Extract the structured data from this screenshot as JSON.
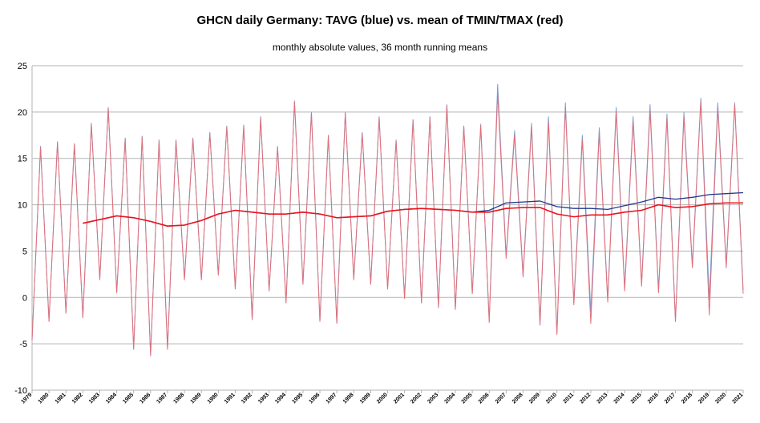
{
  "chart_data": {
    "type": "line",
    "title": "GHCN daily Germany: TAVG (blue) vs. mean of TMIN/TMAX (red)",
    "subtitle": "monthly absolute values, 36 month running means",
    "xlim": [
      1979,
      2021
    ],
    "xticks": [
      1979,
      1980,
      1981,
      1982,
      1983,
      1984,
      1985,
      1986,
      1987,
      1988,
      1989,
      1990,
      1991,
      1992,
      1993,
      1994,
      1995,
      1996,
      1997,
      1998,
      1999,
      2000,
      2001,
      2002,
      2003,
      2004,
      2005,
      2006,
      2007,
      2008,
      2009,
      2010,
      2011,
      2012,
      2013,
      2014,
      2015,
      2016,
      2017,
      2018,
      2019,
      2020,
      2021
    ],
    "ylim": [
      -10,
      25
    ],
    "yticks": [
      -10,
      -5,
      0,
      5,
      10,
      15,
      20,
      25
    ],
    "grid": true,
    "series": [
      {
        "color": "#7a9fd4",
        "width": 1,
        "x": [
          1979,
          1979.5,
          1980,
          1980.5,
          1981,
          1981.5,
          1982,
          1982.5,
          1983,
          1983.5,
          1984,
          1984.5,
          1985,
          1985.5,
          1986,
          1986.5,
          1987,
          1987.5,
          1988,
          1988.5,
          1989,
          1989.5,
          1990,
          1990.5,
          1991,
          1991.5,
          1992,
          1992.5,
          1993,
          1993.5,
          1994,
          1994.5,
          1995,
          1995.5,
          1996,
          1996.5,
          1997,
          1997.5,
          1998,
          1998.5,
          1999,
          1999.5,
          2000,
          2000.5,
          2001,
          2001.5,
          2002,
          2002.5,
          2003,
          2003.5,
          2004,
          2004.5,
          2005,
          2005.5,
          2006,
          2006.5,
          2007,
          2007.5,
          2008,
          2008.5,
          2009,
          2009.5,
          2010,
          2010.5,
          2011,
          2011.5,
          2012,
          2012.5,
          2013,
          2013.5,
          2014,
          2014.5,
          2015,
          2015.5,
          2016,
          2016.5,
          2017,
          2017.5,
          2018,
          2018.5,
          2019,
          2019.5,
          2020,
          2020.5,
          2021
        ],
        "values": [
          -4.5,
          16.3,
          -2.5,
          16.8,
          -1.6,
          16.6,
          -2.1,
          18.8,
          2.0,
          20.5,
          0.6,
          17.2,
          -5.5,
          17.4,
          -6.2,
          17.0,
          -5.5,
          17.0,
          2.0,
          17.2,
          2.0,
          17.8,
          2.5,
          18.5,
          1.0,
          18.6,
          -2.3,
          19.5,
          0.8,
          16.3,
          -0.5,
          21.2,
          1.5,
          20.0,
          -2.5,
          17.5,
          -2.7,
          20.0,
          2.0,
          17.8,
          1.5,
          19.5,
          1.0,
          17.0,
          0.0,
          19.2,
          -0.5,
          19.5,
          -1.0,
          20.8,
          -1.2,
          18.5,
          0.5,
          18.7,
          -2.5,
          23.0,
          4.5,
          18.0,
          2.5,
          18.8,
          -2.8,
          19.5,
          -3.8,
          21.0,
          -0.5,
          17.5,
          -1.5,
          18.3,
          -0.2,
          20.5,
          1.0,
          19.5,
          1.5,
          20.8,
          0.8,
          19.8,
          -2.5,
          20.0,
          3.5,
          21.5,
          -0.2,
          21.0,
          3.5,
          21.0,
          0.8
        ]
      },
      {
        "color": "#e0707a",
        "width": 1,
        "x": [
          1979,
          1979.5,
          1980,
          1980.5,
          1981,
          1981.5,
          1982,
          1982.5,
          1983,
          1983.5,
          1984,
          1984.5,
          1985,
          1985.5,
          1986,
          1986.5,
          1987,
          1987.5,
          1988,
          1988.5,
          1989,
          1989.5,
          1990,
          1990.5,
          1991,
          1991.5,
          1992,
          1992.5,
          1993,
          1993.5,
          1994,
          1994.5,
          1995,
          1995.5,
          1996,
          1996.5,
          1997,
          1997.5,
          1998,
          1998.5,
          1999,
          1999.5,
          2000,
          2000.5,
          2001,
          2001.5,
          2002,
          2002.5,
          2003,
          2003.5,
          2004,
          2004.5,
          2005,
          2005.5,
          2006,
          2006.5,
          2007,
          2007.5,
          2008,
          2008.5,
          2009,
          2009.5,
          2010,
          2010.5,
          2011,
          2011.5,
          2012,
          2012.5,
          2013,
          2013.5,
          2014,
          2014.5,
          2015,
          2015.5,
          2016,
          2016.5,
          2017,
          2017.5,
          2018,
          2018.5,
          2019,
          2019.5,
          2020,
          2020.5,
          2021
        ],
        "values": [
          -4.6,
          16.2,
          -2.6,
          16.7,
          -1.7,
          16.5,
          -2.2,
          18.7,
          1.9,
          20.4,
          0.5,
          17.1,
          -5.6,
          17.3,
          -6.3,
          16.9,
          -5.6,
          16.9,
          1.9,
          17.1,
          1.9,
          17.7,
          2.4,
          18.4,
          0.9,
          18.5,
          -2.4,
          19.4,
          0.7,
          16.2,
          -0.6,
          21.1,
          1.4,
          19.9,
          -2.6,
          17.4,
          -2.8,
          19.9,
          1.9,
          17.7,
          1.4,
          19.4,
          0.9,
          16.9,
          -0.1,
          19.1,
          -0.6,
          19.4,
          -1.1,
          20.7,
          -1.3,
          18.4,
          0.4,
          18.5,
          -2.7,
          22.0,
          4.2,
          17.5,
          2.2,
          18.4,
          -3.0,
          19.0,
          -4.0,
          20.5,
          -0.8,
          17.0,
          -2.8,
          17.8,
          -0.5,
          20.0,
          0.7,
          19.0,
          1.2,
          20.2,
          0.5,
          19.3,
          -2.6,
          19.5,
          3.2,
          21.2,
          -1.9,
          20.5,
          3.2,
          20.8,
          0.4
        ]
      },
      {
        "color": "#1f3a8f",
        "width": 1.3,
        "x": [
          1982,
          1983,
          1984,
          1985,
          1986,
          1987,
          1988,
          1989,
          1990,
          1991,
          1992,
          1993,
          1994,
          1995,
          1996,
          1997,
          1998,
          1999,
          2000,
          2001,
          2002,
          2003,
          2004,
          2005,
          2006,
          2007,
          2008,
          2009,
          2010,
          2011,
          2012,
          2013,
          2014,
          2015,
          2016,
          2017,
          2018,
          2019,
          2020,
          2021
        ],
        "values": [
          8.0,
          8.4,
          8.8,
          8.6,
          8.2,
          7.7,
          7.8,
          8.3,
          9.0,
          9.4,
          9.2,
          9.0,
          9.0,
          9.2,
          9.0,
          8.6,
          8.7,
          8.8,
          9.3,
          9.5,
          9.6,
          9.5,
          9.4,
          9.2,
          9.4,
          10.2,
          10.3,
          10.4,
          9.8,
          9.6,
          9.6,
          9.5,
          9.9,
          10.3,
          10.8,
          10.6,
          10.8,
          11.1,
          11.2,
          11.3
        ]
      },
      {
        "color": "#e8141e",
        "width": 1.6,
        "x": [
          1982,
          1983,
          1984,
          1985,
          1986,
          1987,
          1988,
          1989,
          1990,
          1991,
          1992,
          1993,
          1994,
          1995,
          1996,
          1997,
          1998,
          1999,
          2000,
          2001,
          2002,
          2003,
          2004,
          2005,
          2006,
          2007,
          2008,
          2009,
          2010,
          2011,
          2012,
          2013,
          2014,
          2015,
          2016,
          2017,
          2018,
          2019,
          2020,
          2021
        ],
        "values": [
          8.0,
          8.4,
          8.8,
          8.6,
          8.2,
          7.7,
          7.8,
          8.3,
          9.0,
          9.4,
          9.2,
          9.0,
          9.0,
          9.2,
          9.0,
          8.6,
          8.7,
          8.8,
          9.3,
          9.5,
          9.6,
          9.5,
          9.4,
          9.2,
          9.2,
          9.6,
          9.7,
          9.7,
          9.0,
          8.7,
          8.9,
          8.9,
          9.2,
          9.4,
          10.0,
          9.7,
          9.8,
          10.1,
          10.2,
          10.2
        ]
      }
    ]
  }
}
